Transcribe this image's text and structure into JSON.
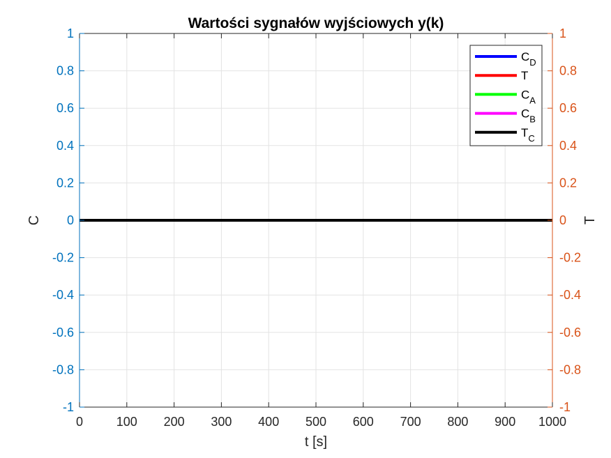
{
  "chart_data": {
    "type": "line",
    "title": "Wartości sygnałów wyjściowych y(k)",
    "xlabel": "t [s]",
    "ylabel_left": "C",
    "ylabel_right": "T",
    "xlim": [
      0,
      1000
    ],
    "ylim_left": [
      -1,
      1
    ],
    "ylim_right": [
      -1,
      1
    ],
    "x_ticks": [
      0,
      100,
      200,
      300,
      400,
      500,
      600,
      700,
      800,
      900,
      1000
    ],
    "y_ticks_left": [
      -1,
      -0.8,
      -0.6,
      -0.4,
      -0.2,
      0,
      0.2,
      0.4,
      0.6,
      0.8,
      1
    ],
    "y_ticks_right": [
      -1,
      -0.8,
      -0.6,
      -0.4,
      -0.2,
      0,
      0.2,
      0.4,
      0.6,
      0.8,
      1
    ],
    "grid": true,
    "legend_position": "top-right",
    "colors": {
      "left_axis": "#0072BD",
      "right_axis": "#D95319",
      "grid": "#e3e3e3",
      "frame": "#262626"
    },
    "series": [
      {
        "name": "C",
        "sub": "D",
        "color": "#0000ff",
        "axis": "left",
        "x": [
          0,
          1000
        ],
        "y": [
          0,
          0
        ]
      },
      {
        "name": "T",
        "sub": "",
        "color": "#ff0000",
        "axis": "right",
        "x": [
          0,
          1000
        ],
        "y": [
          0,
          0
        ]
      },
      {
        "name": "C",
        "sub": "A",
        "color": "#00ff00",
        "axis": "left",
        "x": [
          0,
          1000
        ],
        "y": [
          0,
          0
        ]
      },
      {
        "name": "C",
        "sub": "B",
        "color": "#ff00ff",
        "axis": "left",
        "x": [
          0,
          1000
        ],
        "y": [
          0,
          0
        ]
      },
      {
        "name": "T",
        "sub": "C",
        "color": "#000000",
        "axis": "right",
        "x": [
          0,
          1000
        ],
        "y": [
          0,
          0
        ]
      }
    ]
  }
}
